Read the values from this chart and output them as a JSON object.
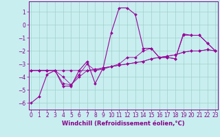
{
  "xlabel": "Windchill (Refroidissement éolien,°C)",
  "bg_color": "#c8eef0",
  "grid_color": "#a0d0c8",
  "line_color": "#990099",
  "spine_color": "#880088",
  "tick_color": "#880088",
  "x_ticks": [
    0,
    1,
    2,
    3,
    4,
    5,
    6,
    7,
    8,
    9,
    10,
    11,
    12,
    13,
    14,
    15,
    16,
    17,
    18,
    19,
    20,
    21,
    22,
    23
  ],
  "y_ticks": [
    -6,
    -5,
    -4,
    -3,
    -2,
    -1,
    0,
    1
  ],
  "xlim": [
    -0.3,
    23.3
  ],
  "ylim": [
    -6.5,
    1.8
  ],
  "y_main": [
    -6.0,
    -5.5,
    -3.8,
    -3.5,
    -4.7,
    -4.7,
    -3.5,
    -2.8,
    -4.5,
    -3.3,
    -0.6,
    1.3,
    1.3,
    0.8,
    -1.8,
    -1.8,
    -2.5,
    -2.5,
    -2.6,
    -0.7,
    -0.8,
    -0.8,
    -1.4,
    -2.0
  ],
  "y_trend1": [
    -3.5,
    -3.5,
    -3.5,
    -3.5,
    -3.5,
    -3.5,
    -3.5,
    -3.5,
    -3.5,
    -3.4,
    -3.2,
    -3.1,
    -3.0,
    -2.9,
    -2.8,
    -2.6,
    -2.5,
    -2.4,
    -2.3,
    -2.1,
    -2.0,
    -2.0,
    -1.9,
    -2.0
  ],
  "y_trend2": [
    -3.5,
    -3.5,
    -3.5,
    -3.5,
    -4.5,
    -4.6,
    -4.0,
    -3.5,
    -3.4,
    -3.3,
    -3.2,
    -3.1,
    -3.0,
    -2.9,
    -2.8,
    -2.6,
    -2.5,
    -2.4,
    -2.3,
    -2.1,
    -2.0,
    -2.0,
    -1.9,
    -2.0
  ],
  "y_trend3": [
    -3.5,
    -3.5,
    -3.5,
    -3.5,
    -4.0,
    -4.6,
    -3.8,
    -3.0,
    -3.5,
    -3.3,
    -3.2,
    -3.0,
    -2.5,
    -2.5,
    -2.0,
    -1.8,
    -2.5,
    -2.5,
    -2.6,
    -0.8,
    -0.8,
    -0.8,
    -1.4,
    -2.0
  ],
  "x_vals": [
    0,
    1,
    2,
    3,
    4,
    5,
    6,
    7,
    8,
    9,
    10,
    11,
    12,
    13,
    14,
    15,
    16,
    17,
    18,
    19,
    20,
    21,
    22,
    23
  ],
  "xlabel_fontsize": 6,
  "tick_fontsize": 5.5,
  "linewidth": 0.8,
  "markersize": 2.0
}
